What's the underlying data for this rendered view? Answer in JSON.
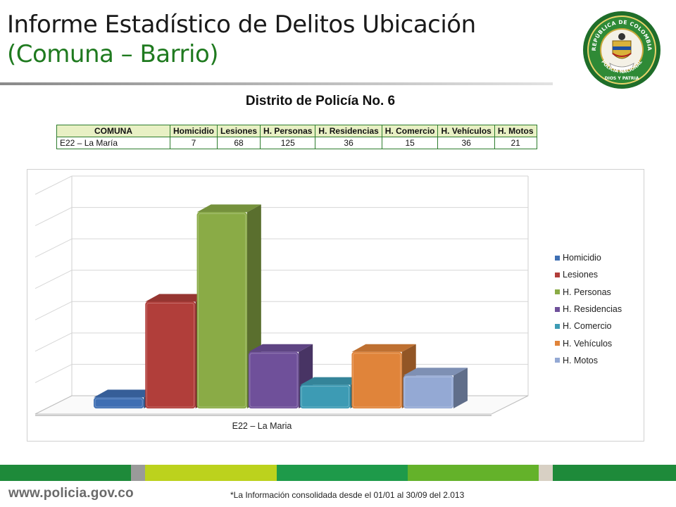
{
  "header": {
    "title_line1": "Informe Estadístico de Delitos Ubicación",
    "title_line2": "(Comuna – Barrio)",
    "emblem": {
      "top_text": "REPÚBLICA DE COLOMBIA",
      "side_text": "POLICÍA NACIONAL",
      "bottom_text": "DIOS Y PATRIA"
    }
  },
  "district_title": "Distrito de Policía No. 6",
  "table": {
    "headers": [
      "COMUNA",
      "Homicidio",
      "Lesiones",
      "H. Personas",
      "H. Residencias",
      "H. Comercio",
      "H. Vehículos",
      "H. Motos"
    ],
    "rows": [
      [
        "E22 – La María",
        "7",
        "68",
        "125",
        "36",
        "15",
        "36",
        "21"
      ]
    ]
  },
  "chart_data": {
    "type": "bar",
    "categories": [
      "E22 – La Maria"
    ],
    "series": [
      {
        "name": "Homicidio",
        "values": [
          7
        ],
        "color": "#3f6fb3"
      },
      {
        "name": "Lesiones",
        "values": [
          68
        ],
        "color": "#b13e3a"
      },
      {
        "name": "H. Personas",
        "values": [
          125
        ],
        "color": "#8aab46"
      },
      {
        "name": "H. Residencias",
        "values": [
          36
        ],
        "color": "#6f509a"
      },
      {
        "name": "H. Comercio",
        "values": [
          15
        ],
        "color": "#3d9bb4"
      },
      {
        "name": "H. Vehículos",
        "values": [
          36
        ],
        "color": "#e0843a"
      },
      {
        "name": "H. Motos",
        "values": [
          21
        ],
        "color": "#94a9d4"
      }
    ],
    "ylim": [
      0,
      140
    ],
    "grid": true,
    "legend_position": "right",
    "three_d": true
  },
  "footer": {
    "site": "www.policia.gov.co",
    "note": "*La Información consolidada desde el 01/01 al 30/09 del 2.013",
    "stripe_colors": [
      "#1e8a3a",
      "#9a9a9a",
      "#bcd21d",
      "#1e9a4a",
      "#64b22a",
      "#d8d0c4",
      "#1e8a3a"
    ]
  }
}
